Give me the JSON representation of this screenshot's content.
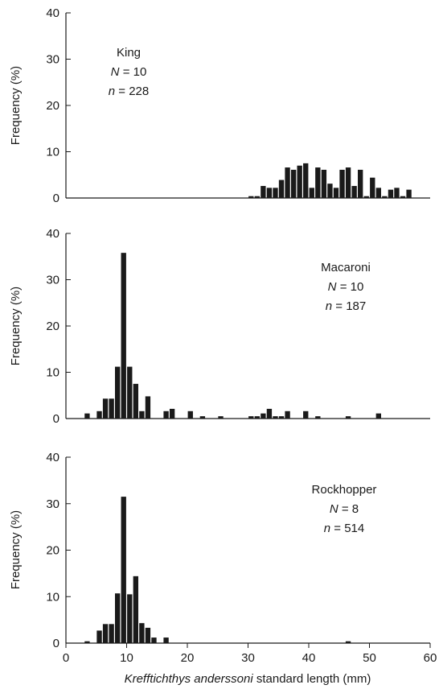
{
  "chart_data": [
    {
      "type": "bar",
      "ylabel": "Frequency (%)",
      "ylim": [
        0,
        40
      ],
      "yticks": [
        "0",
        "10",
        "20",
        "30",
        "40"
      ],
      "annotation": {
        "name": "King",
        "N_label": "N",
        "N_value": "= 10",
        "n_label": "n",
        "n_value": "= 228"
      },
      "bars": [
        {
          "x": 31,
          "y": 0.4
        },
        {
          "x": 32,
          "y": 0.4
        },
        {
          "x": 33,
          "y": 2.6
        },
        {
          "x": 34,
          "y": 2.2
        },
        {
          "x": 35,
          "y": 2.2
        },
        {
          "x": 36,
          "y": 3.9
        },
        {
          "x": 37,
          "y": 6.6
        },
        {
          "x": 38,
          "y": 6.1
        },
        {
          "x": 39,
          "y": 7.0
        },
        {
          "x": 40,
          "y": 7.5
        },
        {
          "x": 41,
          "y": 2.2
        },
        {
          "x": 42,
          "y": 6.6
        },
        {
          "x": 43,
          "y": 6.1
        },
        {
          "x": 44,
          "y": 3.1
        },
        {
          "x": 45,
          "y": 2.2
        },
        {
          "x": 46,
          "y": 6.1
        },
        {
          "x": 47,
          "y": 6.6
        },
        {
          "x": 48,
          "y": 2.6
        },
        {
          "x": 49,
          "y": 6.1
        },
        {
          "x": 50,
          "y": 0.4
        },
        {
          "x": 51,
          "y": 4.4
        },
        {
          "x": 52,
          "y": 2.2
        },
        {
          "x": 53,
          "y": 0.4
        },
        {
          "x": 54,
          "y": 1.8
        },
        {
          "x": 55,
          "y": 2.2
        },
        {
          "x": 56,
          "y": 0.4
        },
        {
          "x": 57,
          "y": 1.8
        }
      ]
    },
    {
      "type": "bar",
      "ylabel": "Frequency (%)",
      "ylim": [
        0,
        40
      ],
      "yticks": [
        "0",
        "10",
        "20",
        "30",
        "40"
      ],
      "annotation": {
        "name": "Macaroni",
        "N_label": "N",
        "N_value": "= 10",
        "n_label": "n",
        "n_value": "= 187"
      },
      "bars": [
        {
          "x": 4,
          "y": 1.1
        },
        {
          "x": 6,
          "y": 1.6
        },
        {
          "x": 7,
          "y": 4.3
        },
        {
          "x": 8,
          "y": 4.3
        },
        {
          "x": 9,
          "y": 11.2
        },
        {
          "x": 10,
          "y": 35.8
        },
        {
          "x": 11,
          "y": 11.2
        },
        {
          "x": 12,
          "y": 7.5
        },
        {
          "x": 13,
          "y": 1.6
        },
        {
          "x": 14,
          "y": 4.8
        },
        {
          "x": 17,
          "y": 1.6
        },
        {
          "x": 18,
          "y": 2.1
        },
        {
          "x": 21,
          "y": 1.6
        },
        {
          "x": 23,
          "y": 0.5
        },
        {
          "x": 26,
          "y": 0.5
        },
        {
          "x": 31,
          "y": 0.5
        },
        {
          "x": 32,
          "y": 0.5
        },
        {
          "x": 33,
          "y": 1.1
        },
        {
          "x": 34,
          "y": 2.1
        },
        {
          "x": 35,
          "y": 0.5
        },
        {
          "x": 36,
          "y": 0.5
        },
        {
          "x": 37,
          "y": 1.6
        },
        {
          "x": 40,
          "y": 1.6
        },
        {
          "x": 42,
          "y": 0.5
        },
        {
          "x": 47,
          "y": 0.5
        },
        {
          "x": 52,
          "y": 1.1
        }
      ]
    },
    {
      "type": "bar",
      "ylabel": "Frequency (%)",
      "ylim": [
        0,
        40
      ],
      "yticks": [
        "0",
        "10",
        "20",
        "30",
        "40"
      ],
      "xlim": [
        0,
        60
      ],
      "xticks": [
        "0",
        "10",
        "20",
        "30",
        "40",
        "50",
        "60"
      ],
      "xlabel_italic": "Krefftichthys anderssoni",
      "xlabel_rest": " standard length (mm)",
      "annotation": {
        "name": "Rockhopper",
        "N_label": "N",
        "N_value": "= 8",
        "n_label": "n",
        "n_value": "= 514"
      },
      "bars": [
        {
          "x": 4,
          "y": 0.4
        },
        {
          "x": 6,
          "y": 2.7
        },
        {
          "x": 7,
          "y": 4.1
        },
        {
          "x": 8,
          "y": 4.1
        },
        {
          "x": 9,
          "y": 10.7
        },
        {
          "x": 10,
          "y": 31.5
        },
        {
          "x": 11,
          "y": 10.5
        },
        {
          "x": 12,
          "y": 14.4
        },
        {
          "x": 13,
          "y": 4.3
        },
        {
          "x": 14,
          "y": 3.3
        },
        {
          "x": 15,
          "y": 1.2
        },
        {
          "x": 17,
          "y": 1.2
        },
        {
          "x": 47,
          "y": 0.4
        }
      ]
    }
  ]
}
